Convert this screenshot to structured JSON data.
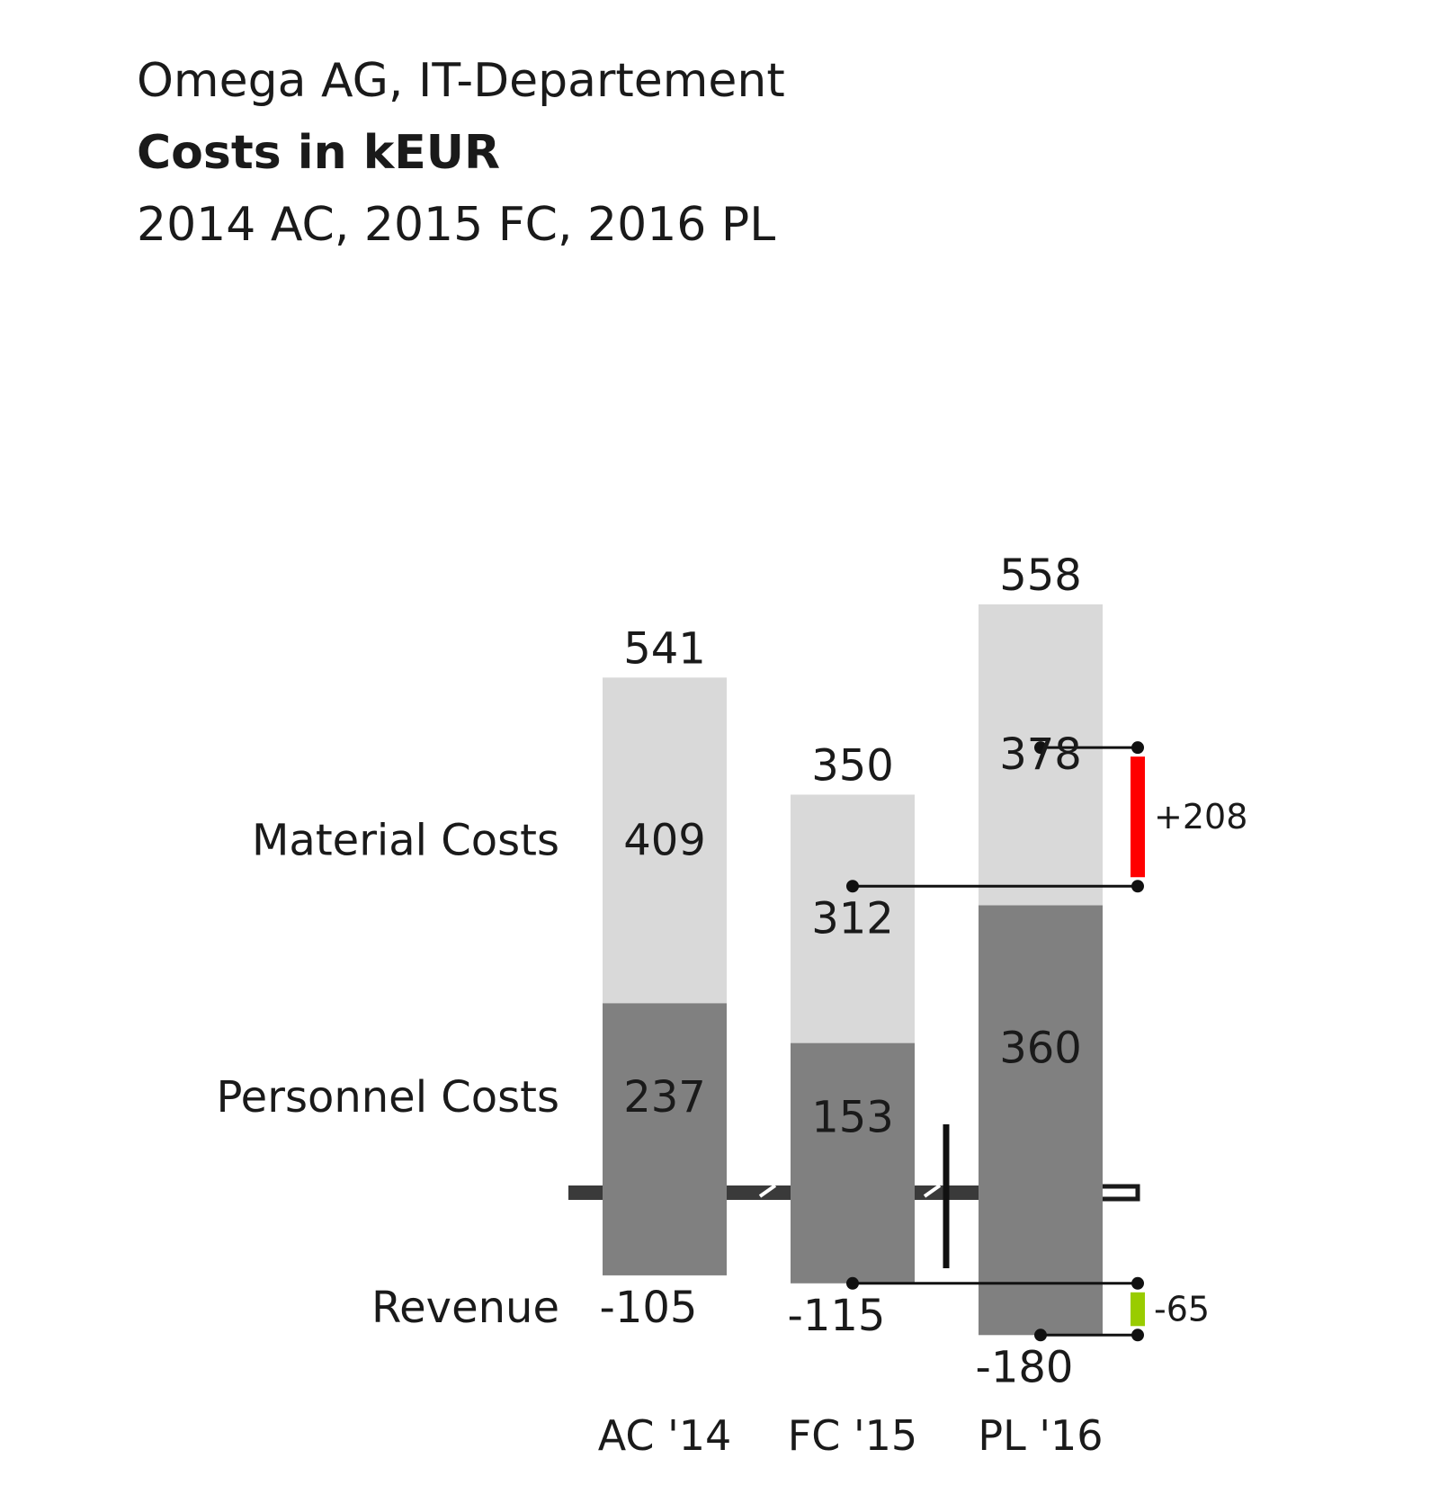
{
  "title": "Omega AG, IT-Departement",
  "subtitle": "Costs in kEUR",
  "subtitle2": "2014 AC, 2015 FC, 2016 PL",
  "chart_data": {
    "type": "bar",
    "stacked": true,
    "categories": [
      "AC '14",
      "FC '15",
      "PL '16"
    ],
    "series": [
      {
        "name": "Material Costs",
        "values": [
          409,
          312,
          378
        ],
        "color": "#d9d9d9"
      },
      {
        "name": "Personnel Costs",
        "values": [
          237,
          153,
          360
        ],
        "color": "#808080"
      },
      {
        "name": "Revenue",
        "values": [
          -105,
          -115,
          -180
        ],
        "color": "#808080"
      }
    ],
    "totals": [
      541,
      350,
      558
    ],
    "totals_labels": [
      "541",
      "350",
      "558"
    ],
    "revenue_labels": [
      "-105",
      "-115",
      "-180"
    ],
    "segment_labels": {
      "material": [
        "409",
        "312",
        "378"
      ],
      "personnel": [
        "237",
        "153",
        "360"
      ]
    },
    "variances": [
      {
        "label": "+208",
        "value": 208,
        "from": 350,
        "to": 558,
        "color": "#ff0000"
      },
      {
        "label": "-65",
        "value": -65,
        "from": -115,
        "to": -180,
        "color": "#99cc00"
      }
    ],
    "axis_break": true,
    "grid": false,
    "legend": "left of bars"
  }
}
